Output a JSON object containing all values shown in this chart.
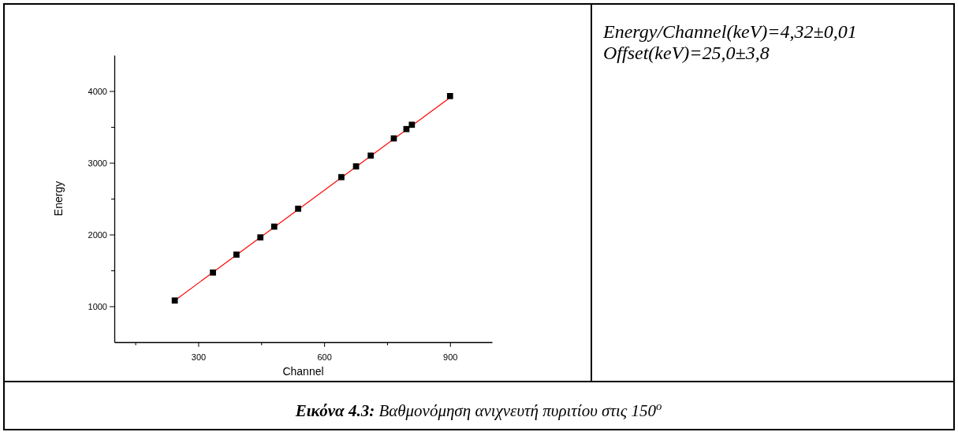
{
  "chart_data": {
    "type": "scatter",
    "title": "Εικόνα 4.3: Βαθμονόμηση ανιχνευτή πυριτίου στις 150$^{o}$",
    "xlabel": "Channel",
    "ylabel": "Energy",
    "annotations": [
      "Energy/Channel(keV)=4,32±0,01",
      "Offset(keV)=25,0±3,8"
    ],
    "xlim": [
      100,
      1000
    ],
    "xticks": [
      {
        "value": 150,
        "label": null
      },
      300,
      {
        "value": 450,
        "label": null
      },
      600,
      {
        "value": 750,
        "label": null
      },
      900
    ],
    "ylim": [
      500,
      4500
    ],
    "yticks": [
      1000,
      {
        "value": 1500,
        "label": null
      },
      2000,
      {
        "value": 2500,
        "label": null
      },
      3000,
      {
        "value": 3500,
        "label": null
      },
      4000
    ],
    "grid": false,
    "series": [
      {
        "color": "#000000",
        "marker": "square",
        "x": [
          244,
          335,
          391,
          448,
          481,
          538,
          641,
          676,
          711,
          766,
          796,
          809,
          900
        ],
        "values": [
          1080,
          1470,
          1720,
          1960,
          2110,
          2360,
          2800,
          2950,
          3100,
          3340,
          3470,
          3530,
          3930
        ]
      },
      {
        "type": "line",
        "color": "#ff0000",
        "marker": "none",
        "line_style": "solid",
        "x": [
          244,
          900
        ],
        "values": [
          1080,
          3910
        ]
      }
    ]
  }
}
